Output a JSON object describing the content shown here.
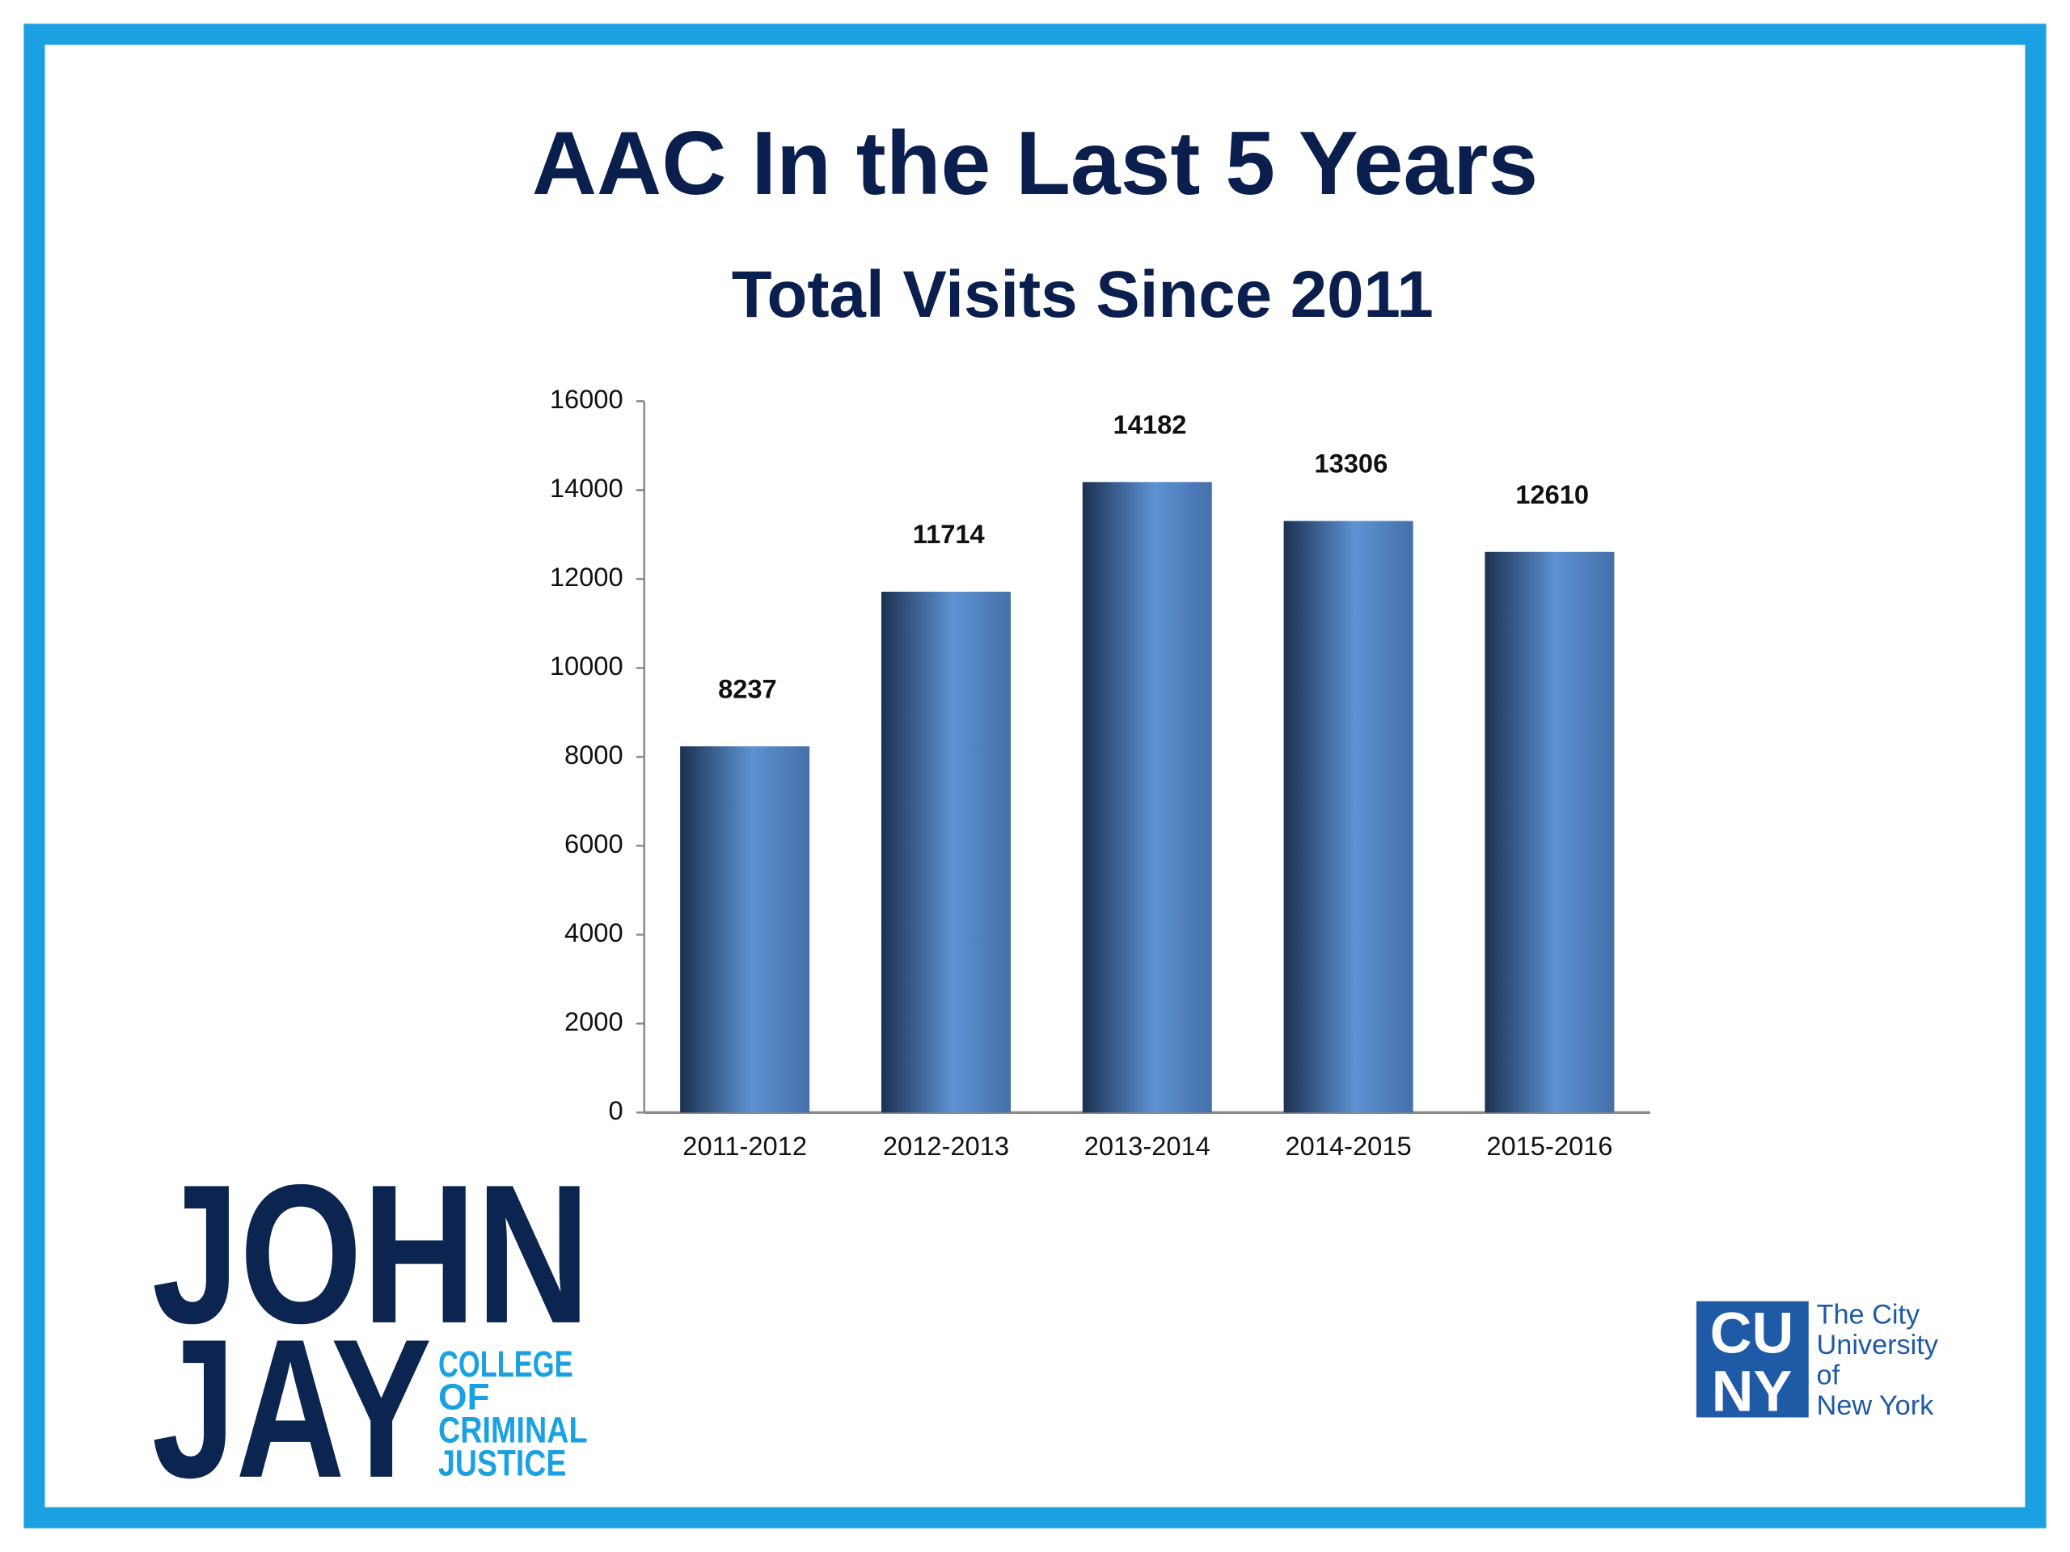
{
  "chart_data": {
    "type": "bar",
    "title": "AAC In the Last 5 Years",
    "subtitle": "Total Visits Since 2011",
    "categories": [
      "2011-2012",
      "2012-2013",
      "2013-2014",
      "2014-2015",
      "2015-2016"
    ],
    "values": [
      8237,
      11714,
      14182,
      13306,
      12610
    ],
    "color": "#4f82c2",
    "ylim": [
      0,
      16000
    ],
    "yticks": [
      0,
      2000,
      4000,
      6000,
      8000,
      10000,
      12000,
      14000,
      16000
    ],
    "grid": false
  },
  "logos": {
    "john_jay": [
      "JOHN",
      "JAY"
    ],
    "college": [
      "COLLEGE",
      "OF",
      "CRIMINAL",
      "JUSTICE"
    ],
    "cuny": [
      "CU",
      "NY"
    ],
    "cuny_name": [
      "The City",
      "University",
      "of",
      "New York"
    ]
  }
}
